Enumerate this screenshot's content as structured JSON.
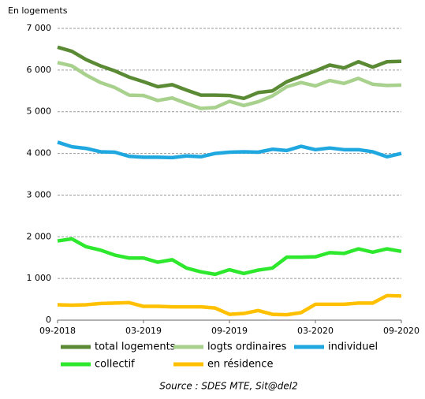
{
  "chart_data": {
    "type": "line",
    "y_axis_label": "En logements",
    "source": "Source : SDES MTE, Sit@del2",
    "categories": [
      "09-2018",
      null,
      null,
      null,
      null,
      null,
      "03-2019",
      null,
      null,
      null,
      null,
      null,
      "09-2019",
      null,
      null,
      null,
      null,
      null,
      "03-2020",
      null,
      null,
      null,
      null,
      null,
      "09-2020"
    ],
    "ylim": [
      0,
      7000
    ],
    "yticks": [
      0,
      {
        "value": 1000,
        "label": "1 000"
      },
      {
        "value": 2000,
        "label": "2 000"
      },
      {
        "value": 3000,
        "label": "3 000"
      },
      {
        "value": 4000,
        "label": "4 000"
      },
      {
        "value": 5000,
        "label": "5 000"
      },
      {
        "value": 6000,
        "label": "6 000"
      },
      {
        "value": 7000,
        "label": "7 000"
      }
    ],
    "grid": true,
    "series": [
      {
        "name": "total logements",
        "color": "#5b8a35",
        "values": [
          6550,
          6450,
          6250,
          6100,
          5980,
          5830,
          5720,
          5600,
          5650,
          5520,
          5400,
          5400,
          5390,
          5320,
          5460,
          5500,
          5720,
          5850,
          5980,
          6120,
          6050,
          6200,
          6070,
          6200,
          6210
        ]
      },
      {
        "name": "logts ordinaires",
        "color": "#a9d18e",
        "values": [
          6180,
          6100,
          5880,
          5700,
          5580,
          5400,
          5390,
          5270,
          5330,
          5200,
          5080,
          5100,
          5250,
          5150,
          5240,
          5380,
          5600,
          5700,
          5620,
          5750,
          5680,
          5800,
          5660,
          5630,
          5640
        ]
      },
      {
        "name": "individuel",
        "color": "#1fa7e0",
        "values": [
          4270,
          4160,
          4120,
          4040,
          4030,
          3930,
          3910,
          3910,
          3900,
          3940,
          3920,
          4000,
          4030,
          4040,
          4030,
          4100,
          4070,
          4170,
          4090,
          4130,
          4090,
          4090,
          4040,
          3920,
          4000
        ]
      },
      {
        "name": "collectif",
        "color": "#2ee82e",
        "values": [
          1900,
          1950,
          1760,
          1680,
          1560,
          1490,
          1490,
          1390,
          1450,
          1250,
          1160,
          1100,
          1210,
          1120,
          1200,
          1250,
          1510,
          1510,
          1520,
          1620,
          1600,
          1710,
          1630,
          1710,
          1650
        ]
      },
      {
        "name": "en résidence",
        "color": "#ffc000",
        "values": [
          370,
          360,
          370,
          400,
          410,
          420,
          330,
          330,
          320,
          320,
          320,
          290,
          140,
          160,
          230,
          140,
          130,
          180,
          380,
          380,
          380,
          410,
          410,
          590,
          580
        ]
      }
    ]
  }
}
